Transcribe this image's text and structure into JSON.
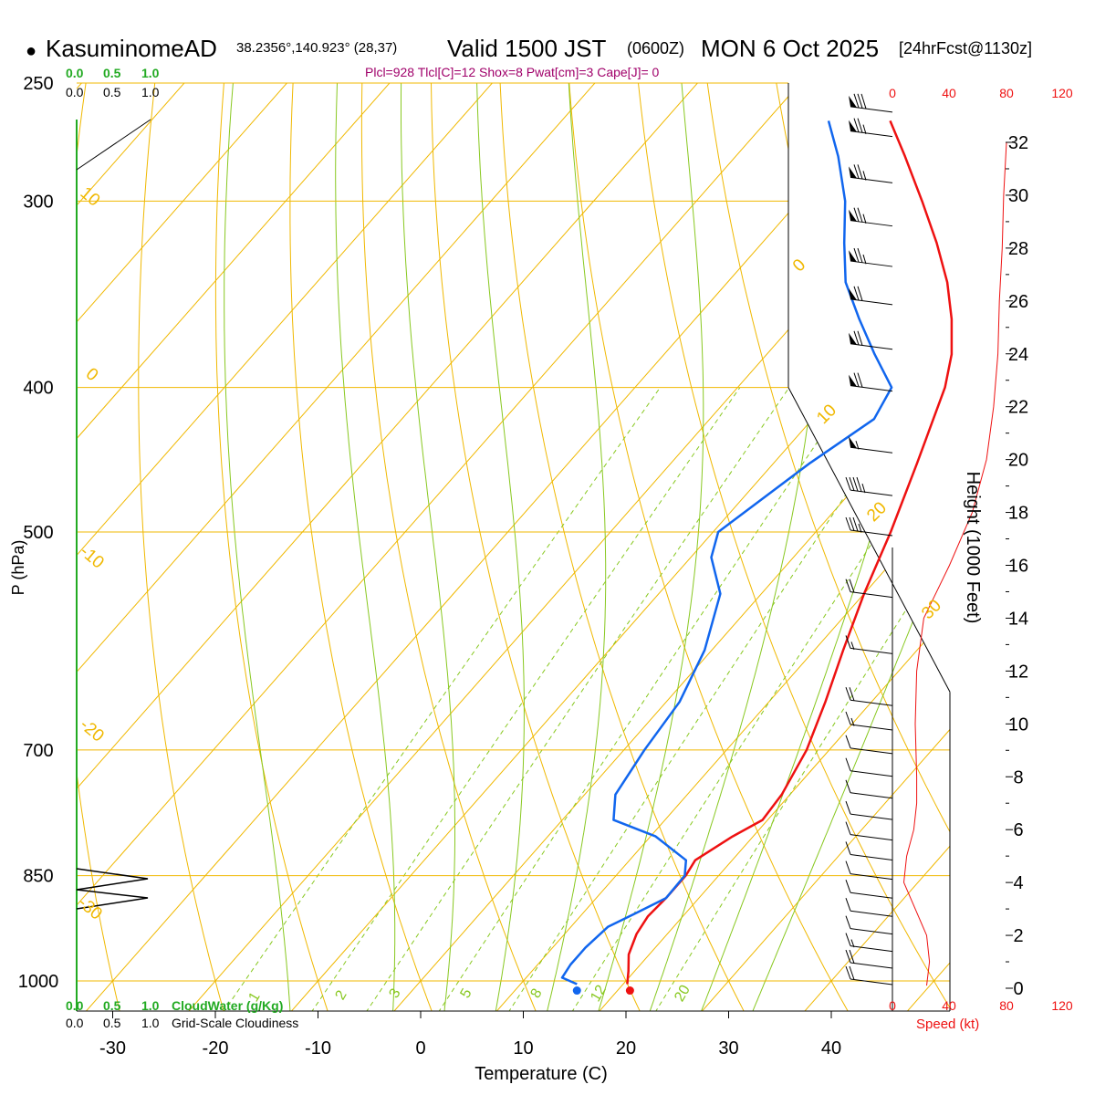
{
  "header": {
    "bullet": "●",
    "station": "KasuminomeAD",
    "coords": "38.2356°,140.923° (28,37)",
    "valid_prefix": "Valid 1500 JST",
    "zulu": "(0600Z)",
    "date": "MON 6 Oct 2025",
    "forecast": "[24hrFcst@1130z]",
    "indices": "Plcl=928 Tlcl[C]=12 Shox=8 Pwat[cm]=3 Cape[J]= 0"
  },
  "colors": {
    "temperature": "#ee1111",
    "dewpoint": "#1166ee",
    "isobar_isotherm": "#f0b800",
    "dry_adiabat": "#f0b800",
    "mixing_ratio": "#88c820",
    "moist_adiabat": "#88c820",
    "cloud": "#22aa22",
    "index_text": "#a0006a",
    "speed": "#ee1111"
  },
  "chart_data": {
    "type": "skew-t",
    "title": "KasuminomeAD Valid 1500 JST (0600Z) MON 6 Oct 2025",
    "xlabel": "Temperature (C)",
    "ylabel": "P (hPa)",
    "right_axis_label": "Height (1000 Feet)",
    "pressure_range": [
      250,
      1050
    ],
    "pressure_ticks": [
      250,
      300,
      400,
      500,
      700,
      850,
      1000
    ],
    "temperature_ticks": [
      -30,
      -20,
      -10,
      0,
      10,
      20,
      30,
      40
    ],
    "height_ticks": [
      0,
      2,
      4,
      6,
      8,
      10,
      12,
      14,
      16,
      18,
      20,
      22,
      24,
      26,
      28,
      30,
      32
    ],
    "cloud_scale_top": [
      "0.0",
      "0.5",
      "1.0"
    ],
    "cloud_scale_top_grid": [
      "0.0",
      "0.5",
      "1.0"
    ],
    "cloud_scale_bottom": [
      "0.0",
      "0.5",
      "1.0"
    ],
    "cloud_scale_bottom_grid": [
      "0.0",
      "0.5",
      "1.0"
    ],
    "cloud_water_label": "CloudWater (g/Kg)",
    "cloudiness_label": "Grid-Scale Cloudiness",
    "speed_ticks": [
      "0",
      "40",
      "80",
      "120"
    ],
    "speed_label": "Speed (kt)",
    "dry_adiabat_labels": [
      "10",
      "0",
      "-10",
      "-20",
      "-30",
      "0",
      "10",
      "20",
      "30"
    ],
    "mixing_ratio_labels": [
      "1",
      "2",
      "3",
      "5",
      "8",
      "12",
      "20"
    ],
    "temperature_profile": [
      {
        "p": 1005,
        "t": 20.4
      },
      {
        "p": 985,
        "t": 19.4
      },
      {
        "p": 960,
        "t": 18.0
      },
      {
        "p": 930,
        "t": 17.0
      },
      {
        "p": 905,
        "t": 16.6
      },
      {
        "p": 880,
        "t": 16.8
      },
      {
        "p": 850,
        "t": 16.8
      },
      {
        "p": 830,
        "t": 16.4
      },
      {
        "p": 800,
        "t": 18.0
      },
      {
        "p": 780,
        "t": 19.5
      },
      {
        "p": 750,
        "t": 19.2
      },
      {
        "p": 700,
        "t": 17.8
      },
      {
        "p": 650,
        "t": 15.5
      },
      {
        "p": 600,
        "t": 12.8
      },
      {
        "p": 550,
        "t": 10.0
      },
      {
        "p": 500,
        "t": 7.3
      },
      {
        "p": 450,
        "t": 4.0
      },
      {
        "p": 400,
        "t": 0.2
      },
      {
        "p": 380,
        "t": -2.0
      },
      {
        "p": 360,
        "t": -5.0
      },
      {
        "p": 340,
        "t": -8.6
      },
      {
        "p": 320,
        "t": -13.0
      },
      {
        "p": 300,
        "t": -18.0
      },
      {
        "p": 280,
        "t": -23.5
      },
      {
        "p": 265,
        "t": -28.0
      }
    ],
    "dewpoint_profile": [
      {
        "p": 1005,
        "t": 15.5
      },
      {
        "p": 995,
        "t": 13.5
      },
      {
        "p": 975,
        "t": 13.2
      },
      {
        "p": 950,
        "t": 13.2
      },
      {
        "p": 920,
        "t": 13.6
      },
      {
        "p": 900,
        "t": 15.2
      },
      {
        "p": 880,
        "t": 16.8
      },
      {
        "p": 850,
        "t": 16.7
      },
      {
        "p": 830,
        "t": 15.5
      },
      {
        "p": 800,
        "t": 10.5
      },
      {
        "p": 780,
        "t": 5.0
      },
      {
        "p": 750,
        "t": 3.0
      },
      {
        "p": 700,
        "t": 2.0
      },
      {
        "p": 650,
        "t": 1.3
      },
      {
        "p": 600,
        "t": -0.7
      },
      {
        "p": 550,
        "t": -4.0
      },
      {
        "p": 520,
        "t": -8.0
      },
      {
        "p": 500,
        "t": -9.5
      },
      {
        "p": 450,
        "t": -6.5
      },
      {
        "p": 420,
        "t": -4.0
      },
      {
        "p": 400,
        "t": -5.0
      },
      {
        "p": 380,
        "t": -9.5
      },
      {
        "p": 360,
        "t": -14.0
      },
      {
        "p": 340,
        "t": -18.5
      },
      {
        "p": 320,
        "t": -22.0
      },
      {
        "p": 300,
        "t": -25.5
      },
      {
        "p": 280,
        "t": -30.0
      },
      {
        "p": 265,
        "t": -34.0
      }
    ],
    "surface_points": {
      "temperature": 20.4,
      "dewpoint": 15.5
    },
    "wind_speed_profile": [
      {
        "h": 0.1,
        "kt": 24
      },
      {
        "h": 1,
        "kt": 26
      },
      {
        "h": 2,
        "kt": 24
      },
      {
        "h": 3,
        "kt": 16
      },
      {
        "h": 4,
        "kt": 8
      },
      {
        "h": 5,
        "kt": 10
      },
      {
        "h": 6,
        "kt": 15
      },
      {
        "h": 7,
        "kt": 17
      },
      {
        "h": 8,
        "kt": 17
      },
      {
        "h": 10,
        "kt": 16
      },
      {
        "h": 12,
        "kt": 17
      },
      {
        "h": 14,
        "kt": 22
      },
      {
        "h": 16,
        "kt": 40
      },
      {
        "h": 18,
        "kt": 56
      },
      {
        "h": 20,
        "kt": 66
      },
      {
        "h": 22,
        "kt": 71
      },
      {
        "h": 24,
        "kt": 74
      },
      {
        "h": 26,
        "kt": 75
      },
      {
        "h": 28,
        "kt": 77
      },
      {
        "h": 30,
        "kt": 78
      },
      {
        "h": 32,
        "kt": 80
      }
    ],
    "wind_barbs": [
      {
        "p": 1000,
        "kt": 20
      },
      {
        "p": 975,
        "kt": 20
      },
      {
        "p": 950,
        "kt": 15
      },
      {
        "p": 925,
        "kt": 10
      },
      {
        "p": 900,
        "kt": 10
      },
      {
        "p": 875,
        "kt": 10
      },
      {
        "p": 850,
        "kt": 10
      },
      {
        "p": 825,
        "kt": 10
      },
      {
        "p": 800,
        "kt": 10
      },
      {
        "p": 775,
        "kt": 10
      },
      {
        "p": 750,
        "kt": 10
      },
      {
        "p": 725,
        "kt": 10
      },
      {
        "p": 700,
        "kt": 10
      },
      {
        "p": 675,
        "kt": 15
      },
      {
        "p": 650,
        "kt": 20
      },
      {
        "p": 600,
        "kt": 15
      },
      {
        "p": 550,
        "kt": 20
      },
      {
        "p": 500,
        "kt": 35
      },
      {
        "p": 470,
        "kt": 45
      },
      {
        "p": 440,
        "kt": 55
      },
      {
        "p": 400,
        "kt": 70
      },
      {
        "p": 375,
        "kt": 70
      },
      {
        "p": 350,
        "kt": 70
      },
      {
        "p": 330,
        "kt": 75
      },
      {
        "p": 310,
        "kt": 75
      },
      {
        "p": 290,
        "kt": 75
      },
      {
        "p": 270,
        "kt": 75
      },
      {
        "p": 260,
        "kt": 80
      }
    ]
  }
}
